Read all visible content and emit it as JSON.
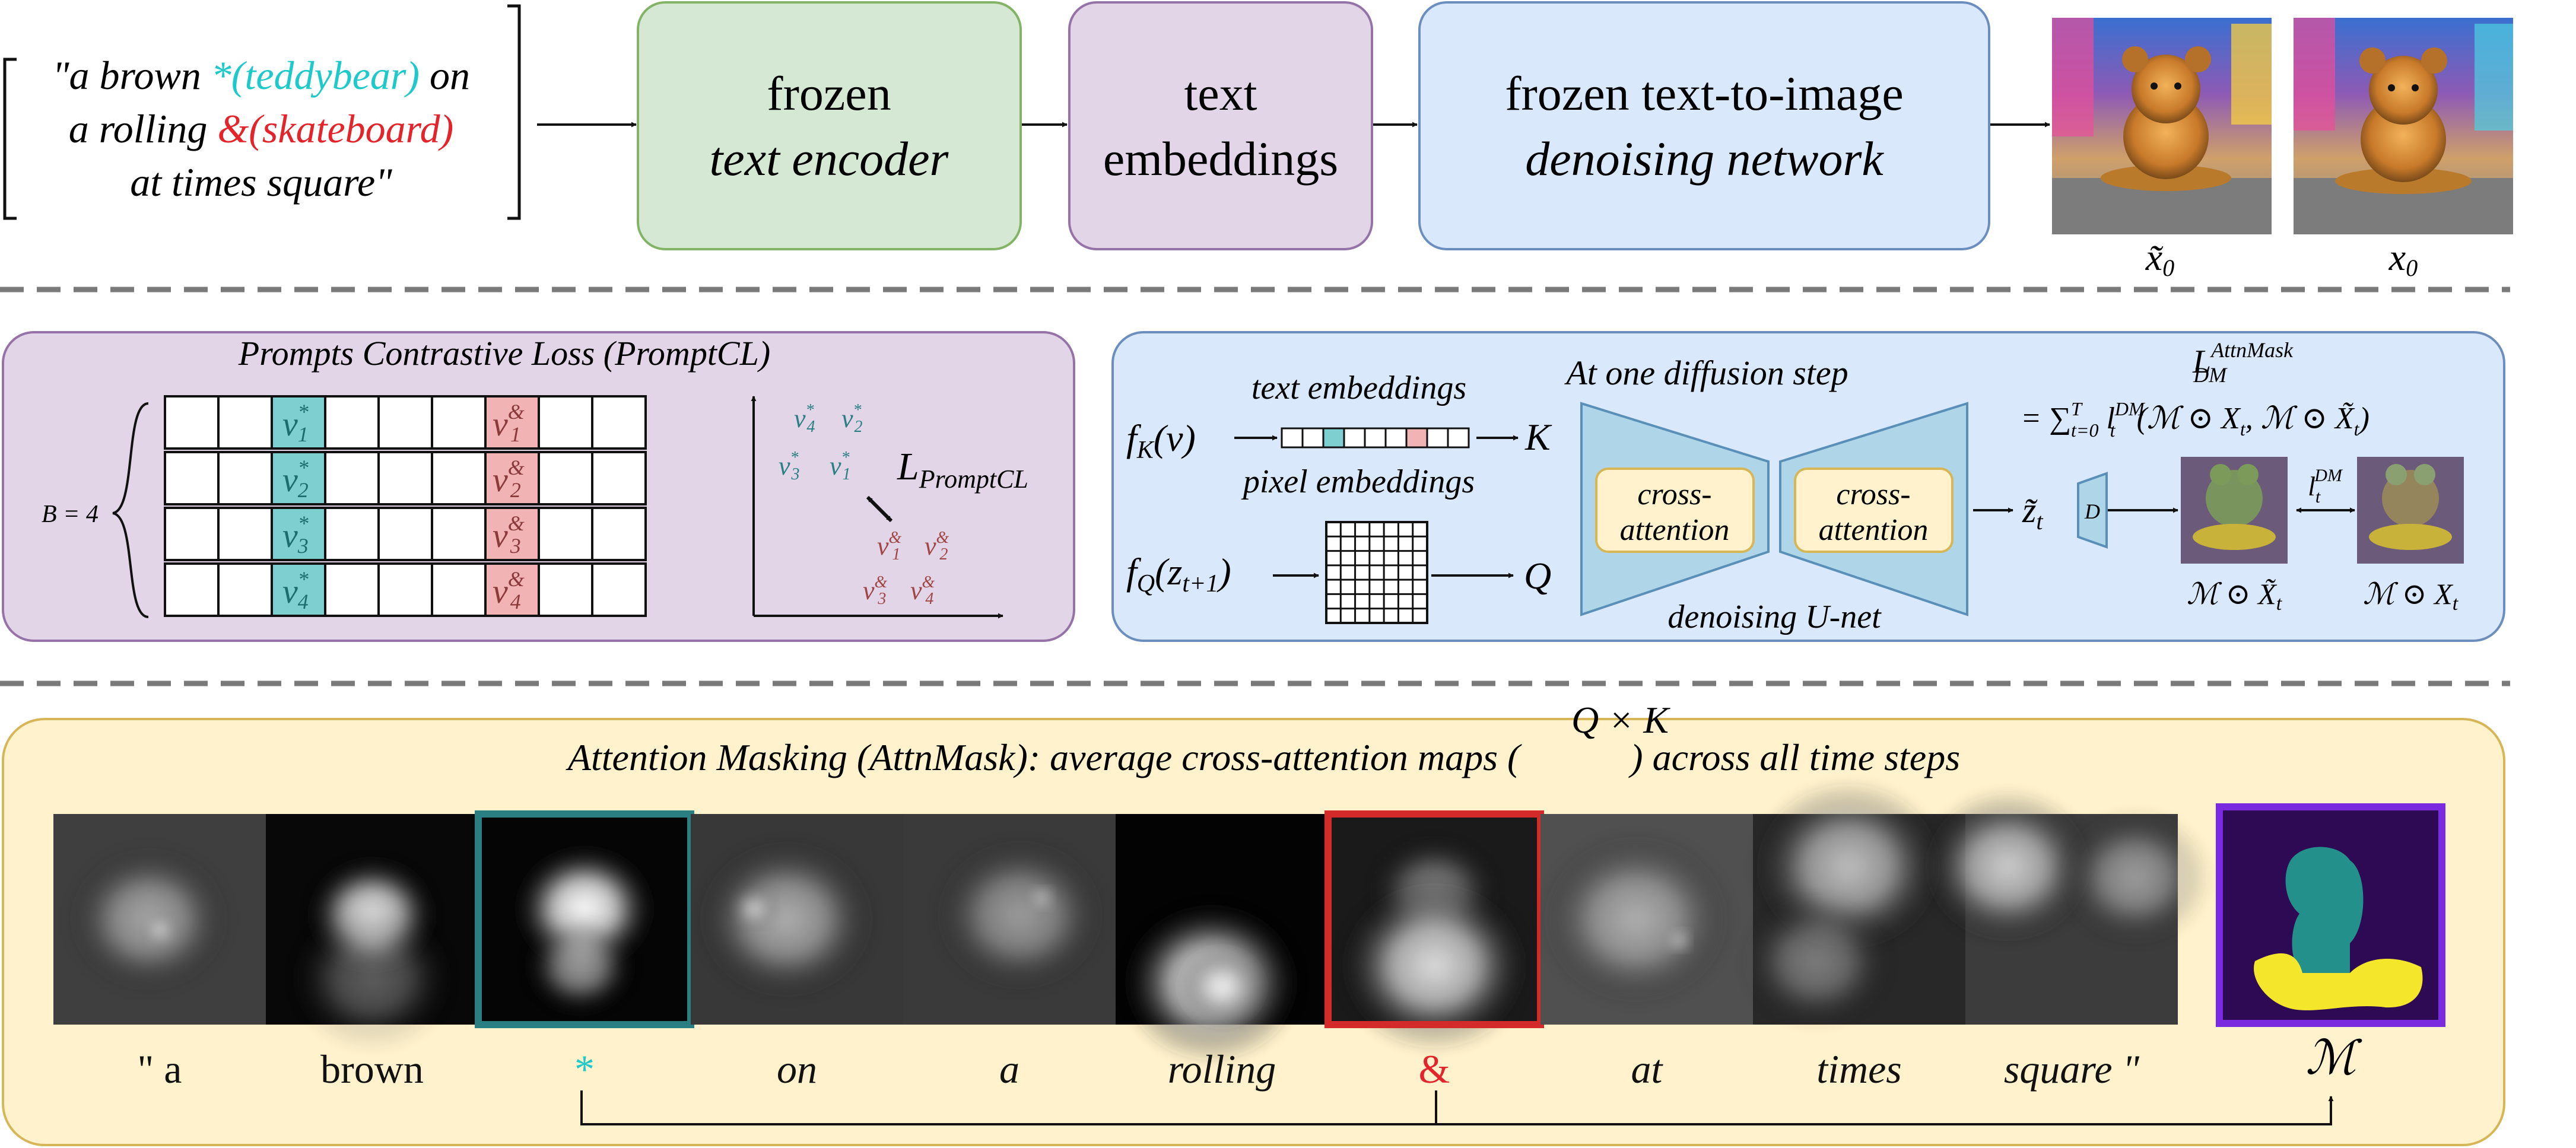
{
  "prompt": {
    "line1": {
      "a": "\"a brown ",
      "star": "*",
      "tb": "(teddybear)",
      "on": " on"
    },
    "line2": {
      "a": "a rolling ",
      "amp": "&",
      "sk": "(skateboard)"
    },
    "line3": "at times square\""
  },
  "pipeline": {
    "encoder": {
      "l1": "frozen",
      "l2": "text encoder"
    },
    "embeddings": {
      "l1": "text",
      "l2": "embeddings"
    },
    "denoiser": {
      "l1": "frozen text-to-image",
      "l2": "denoising network"
    },
    "out_labels": {
      "a": "x̃",
      "b": "x",
      "sub": "0"
    }
  },
  "promptcl": {
    "title": "Prompts Contrastive Loss (PromptCL)",
    "batch": "B = 4",
    "v": "v",
    "star": "*",
    "amp": "&",
    "indices": [
      "1",
      "2",
      "3",
      "4"
    ],
    "loss": "L",
    "loss_sub": "PromptCL"
  },
  "diffusion": {
    "fk": "f",
    "k_sub": "K",
    "fk_arg": "(v)",
    "fq": "f",
    "q_sub": "Q",
    "fq_arg": "(z",
    "fq_arg_sub": "t+1",
    "fq_close": ")",
    "text_emb": "text embeddings",
    "pix_emb": "pixel embeddings",
    "k": "K",
    "q": "Q",
    "step_title": "At one diffusion step",
    "cross": {
      "l1": "cross-",
      "l2": "attention"
    },
    "unet": "denoising U-net",
    "z": "z̃",
    "z_sub": "t",
    "dec": "D",
    "loss_L": "L",
    "loss_sup": "AttnMask",
    "loss_sub": "DM",
    "loss_eq": "= ∑",
    "sum_sup": "T",
    "sum_sub": "t=0",
    "l": " l",
    "l_sup": "DM",
    "l_sub": "t",
    "l_args": "(ℳ ⊙ X",
    "l_args_sub": "t",
    "l_args2": ", ℳ ⊙ X̃",
    "l_args2_sub": "t",
    "l_close": ")",
    "lt": "l",
    "lt_sup": "DM",
    "lt_sub": "t",
    "m_label1": "ℳ ⊙ X̃",
    "m_label2": "ℳ ⊙ X",
    "m_sub": "t"
  },
  "attnmask": {
    "title_pre": "Attention Masking (AttnMask): average cross-attention maps (",
    "title_post": ") across all time steps",
    "qk": "Q × K",
    "tokens": [
      "\"  a",
      "brown",
      "*",
      "on",
      "a",
      "rolling",
      "&",
      "at",
      "times",
      "square  \""
    ],
    "mask": "ℳ"
  },
  "colors": {
    "green_box": "#d5e8d4",
    "green_edge": "#82b366",
    "purple_box": "#e1d5e7",
    "purple_edge": "#9673a6",
    "blue_box": "#dae8fc",
    "blue_edge": "#6c8ebf",
    "yellow_box": "#fff2cc",
    "yellow_edge": "#d6b656",
    "teal": "#1ec9c9",
    "red": "#e3242b",
    "teal_cell": "#7ecfcf",
    "red_cell": "#f1b3b3",
    "teal_frame": "#2a7f83",
    "red_frame": "#d42a2a"
  }
}
